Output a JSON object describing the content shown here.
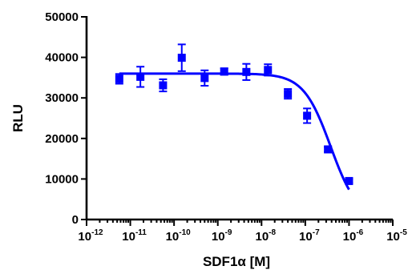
{
  "chart_data": {
    "type": "scatter",
    "xlabel": "SDF1α [M]",
    "ylabel": "RLU",
    "x_scale": "log",
    "xlim": [
      1e-12,
      1e-05
    ],
    "ylim": [
      0,
      50000
    ],
    "y_ticks": [
      "0",
      "10000",
      "20000",
      "30000",
      "40000",
      "50000"
    ],
    "x_ticks": [
      {
        "base": "10",
        "exp": "-12"
      },
      {
        "base": "10",
        "exp": "-11"
      },
      {
        "base": "10",
        "exp": "-10"
      },
      {
        "base": "10",
        "exp": "-9"
      },
      {
        "base": "10",
        "exp": "-8"
      },
      {
        "base": "10",
        "exp": "-7"
      },
      {
        "base": "10",
        "exp": "-6"
      },
      {
        "base": "10",
        "exp": "-5"
      }
    ],
    "series_color": "#0000ff",
    "points": [
      {
        "x": 5.6e-12,
        "y": 34700,
        "err": 1200
      },
      {
        "x": 1.7e-11,
        "y": 35200,
        "err": 2500
      },
      {
        "x": 5.6e-11,
        "y": 33100,
        "err": 1500
      },
      {
        "x": 1.5e-10,
        "y": 39900,
        "err": 3300
      },
      {
        "x": 5e-10,
        "y": 34900,
        "err": 1900
      },
      {
        "x": 1.4e-09,
        "y": 36500,
        "err": 800
      },
      {
        "x": 4.5e-09,
        "y": 36400,
        "err": 2000
      },
      {
        "x": 1.4e-08,
        "y": 36900,
        "err": 1400
      },
      {
        "x": 4e-08,
        "y": 31000,
        "err": 1200
      },
      {
        "x": 1.1e-07,
        "y": 25600,
        "err": 1800
      },
      {
        "x": 3.3e-07,
        "y": 17300,
        "err": 600
      },
      {
        "x": 1e-06,
        "y": 9500,
        "err": 500
      }
    ],
    "fit": {
      "model": "four-parameter logistic",
      "top": 36000,
      "bottom": 0,
      "ic50": 3.8e-07,
      "hill": 1.4,
      "x_range": [
        5.6e-12,
        1e-06
      ]
    }
  }
}
